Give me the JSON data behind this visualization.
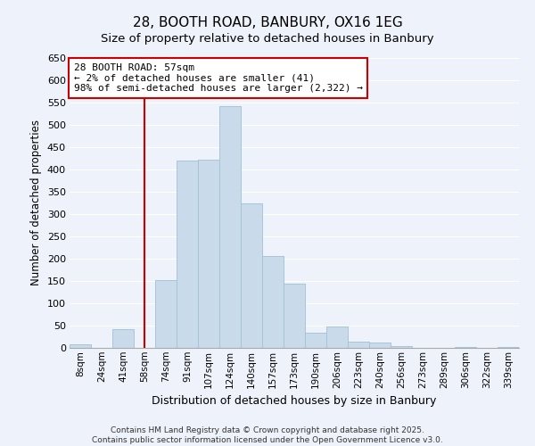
{
  "title": "28, BOOTH ROAD, BANBURY, OX16 1EG",
  "subtitle": "Size of property relative to detached houses in Banbury",
  "xlabel": "Distribution of detached houses by size in Banbury",
  "ylabel": "Number of detached properties",
  "bar_color": "#c9daea",
  "bar_edge_color": "#a8c4d8",
  "background_color": "#eef2fa",
  "grid_color": "#ffffff",
  "categories": [
    "8sqm",
    "24sqm",
    "41sqm",
    "58sqm",
    "74sqm",
    "91sqm",
    "107sqm",
    "124sqm",
    "140sqm",
    "157sqm",
    "173sqm",
    "190sqm",
    "206sqm",
    "223sqm",
    "240sqm",
    "256sqm",
    "273sqm",
    "289sqm",
    "306sqm",
    "322sqm",
    "339sqm"
  ],
  "values": [
    8,
    0,
    43,
    0,
    153,
    421,
    422,
    543,
    325,
    206,
    144,
    35,
    49,
    15,
    13,
    5,
    0,
    0,
    2,
    0,
    2
  ],
  "ylim": [
    0,
    650
  ],
  "yticks": [
    0,
    50,
    100,
    150,
    200,
    250,
    300,
    350,
    400,
    450,
    500,
    550,
    600,
    650
  ],
  "property_line_x": 3,
  "property_line_color": "#cc0000",
  "annotation_title": "28 BOOTH ROAD: 57sqm",
  "annotation_line1": "← 2% of detached houses are smaller (41)",
  "annotation_line2": "98% of semi-detached houses are larger (2,322) →",
  "annotation_box_color": "#ffffff",
  "annotation_box_edge_color": "#cc0000",
  "footer1": "Contains HM Land Registry data © Crown copyright and database right 2025.",
  "footer2": "Contains public sector information licensed under the Open Government Licence v3.0."
}
